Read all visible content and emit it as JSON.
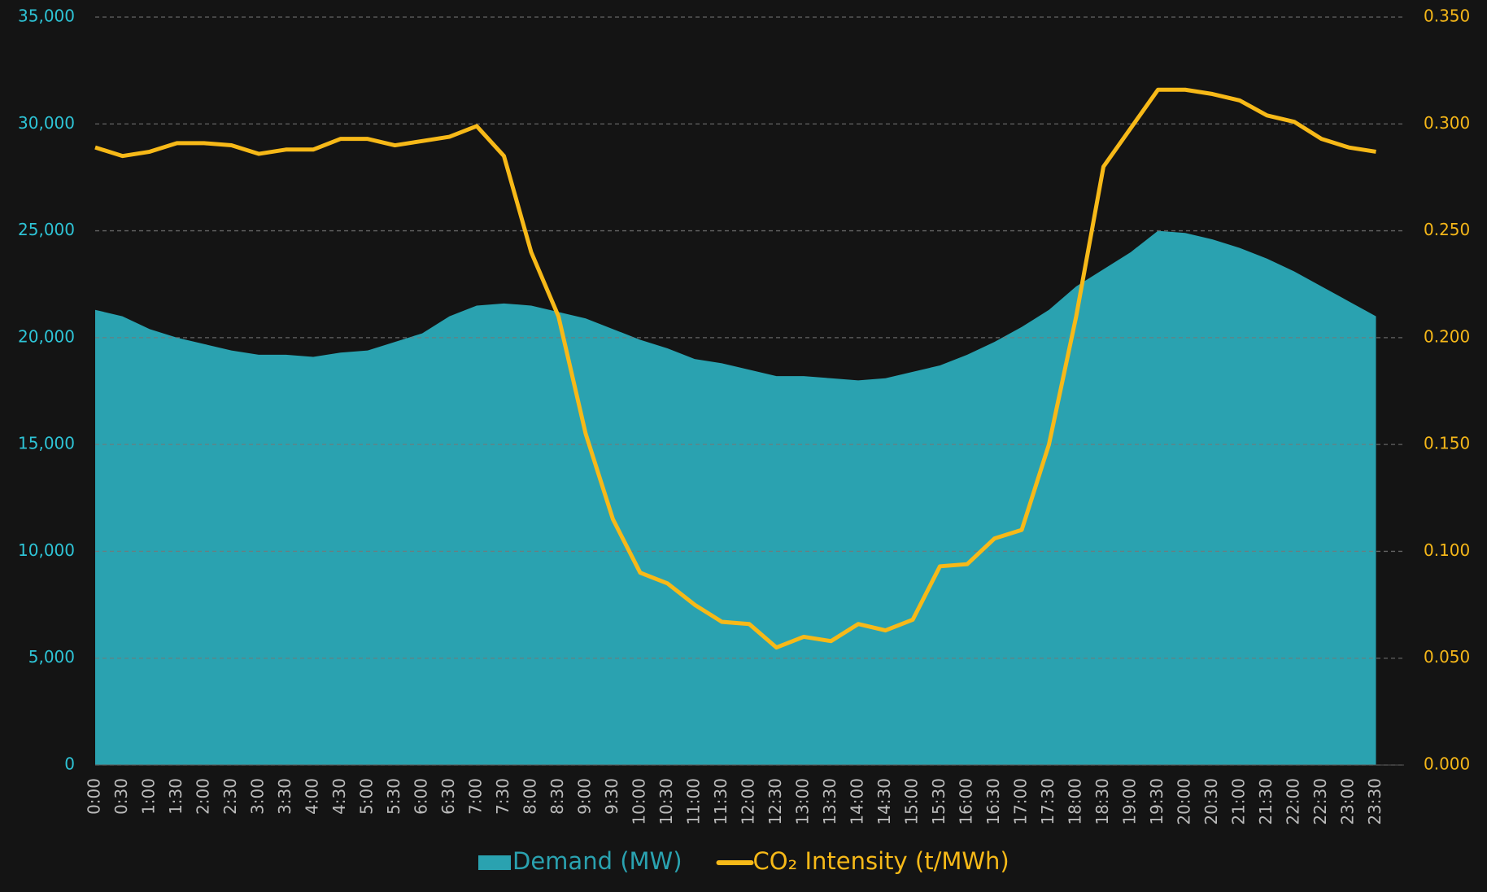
{
  "chart_data": {
    "type": "area-line",
    "categories": [
      "0:00",
      "0:30",
      "1:00",
      "1:30",
      "2:00",
      "2:30",
      "3:00",
      "3:30",
      "4:00",
      "4:30",
      "5:00",
      "5:30",
      "6:00",
      "6:30",
      "7:00",
      "7:30",
      "8:00",
      "8:30",
      "9:00",
      "9:30",
      "10:00",
      "10:30",
      "11:00",
      "11:30",
      "12:00",
      "12:30",
      "13:00",
      "13:30",
      "14:00",
      "14:30",
      "15:00",
      "15:30",
      "16:00",
      "16:30",
      "17:00",
      "17:30",
      "18:00",
      "18:30",
      "19:00",
      "19:30",
      "20:00",
      "20:30",
      "21:00",
      "21:30",
      "22:00",
      "22:30",
      "23:00",
      "23:30"
    ],
    "series": [
      {
        "name": "Demand (MW)",
        "color": "#2aa2b0",
        "axis": "y",
        "values": [
          21300,
          21000,
          20400,
          20000,
          19700,
          19400,
          19200,
          19200,
          19100,
          19300,
          19400,
          19800,
          20200,
          21000,
          21500,
          21600,
          21500,
          21200,
          20900,
          20400,
          19900,
          19500,
          19000,
          18800,
          18500,
          18200,
          18200,
          18100,
          18000,
          18100,
          18400,
          18700,
          19200,
          19800,
          20500,
          21300,
          22400,
          23200,
          24000,
          25000,
          24900,
          24600,
          24200,
          23700,
          23100,
          22400,
          21700,
          21000
        ]
      },
      {
        "name": "CO₂ Intensity (t/MWh)",
        "color": "#f7b918",
        "axis": "y2",
        "values": [
          0.289,
          0.285,
          0.287,
          0.291,
          0.291,
          0.29,
          0.286,
          0.288,
          0.288,
          0.293,
          0.293,
          0.29,
          0.292,
          0.294,
          0.299,
          0.285,
          0.24,
          0.21,
          0.155,
          0.115,
          0.09,
          0.085,
          0.075,
          0.067,
          0.066,
          0.055,
          0.06,
          0.058,
          0.066,
          0.063,
          0.068,
          0.093,
          0.094,
          0.106,
          0.11,
          0.15,
          0.21,
          0.28,
          0.298,
          0.316,
          0.316,
          0.314,
          0.311,
          0.304,
          0.301,
          0.293,
          0.289,
          0.287
        ]
      }
    ],
    "ylim": [
      0,
      35000
    ],
    "yticks": [
      0,
      {
        "value": 5000,
        "label": "5,000"
      },
      {
        "value": 10000,
        "label": "10,000"
      },
      {
        "value": 15000,
        "label": "15,000"
      },
      {
        "value": 20000,
        "label": "20,000"
      },
      {
        "value": 25000,
        "label": "25,000"
      },
      {
        "value": 30000,
        "label": "30,000"
      },
      {
        "value": 35000,
        "label": "35,000"
      }
    ],
    "y2lim": [
      0,
      0.35
    ],
    "y2ticks": [
      {
        "value": 0,
        "label": "0.000"
      },
      {
        "value": 0.05,
        "label": "0.050"
      },
      {
        "value": 0.1,
        "label": "0.100"
      },
      {
        "value": 0.15,
        "label": "0.150"
      },
      {
        "value": 0.2,
        "label": "0.200"
      },
      {
        "value": 0.25,
        "label": "0.250"
      },
      {
        "value": 0.3,
        "label": "0.300"
      },
      {
        "value": 0.35,
        "label": "0.350"
      }
    ],
    "grid": true,
    "legend": "bottom"
  }
}
